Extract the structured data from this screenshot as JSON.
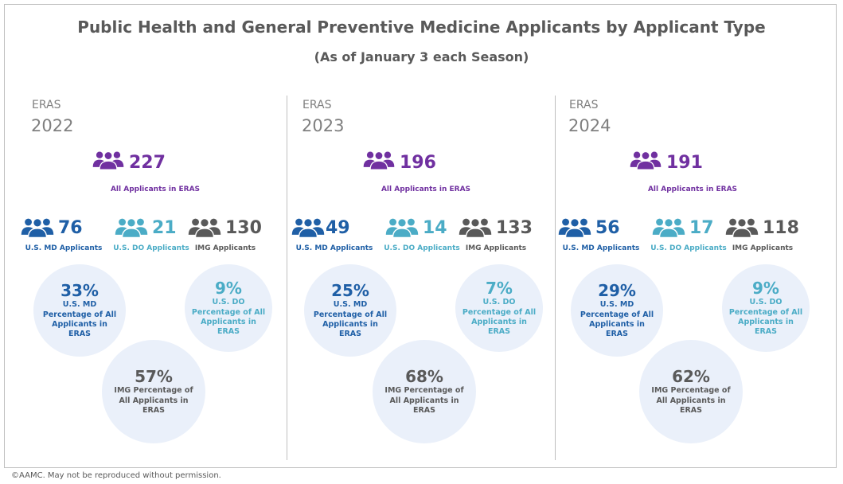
{
  "title": "Public Health and General Preventive Medicine Applicants by Applicant Type",
  "subtitle": "(As of January 3 each Season)",
  "footer": "©AAMC. May not be reproduced without permission.",
  "panels": [
    {
      "system": "ERAS",
      "year": "2022",
      "total": {
        "value": "227",
        "label": "All Applicants in ERAS"
      },
      "groups": [
        {
          "value": "76",
          "label": "U.S. MD Applicants"
        },
        {
          "value": "21",
          "label": "U.S. DO Applicants"
        },
        {
          "value": "130",
          "label": "IMG Applicants"
        }
      ],
      "percentages": [
        {
          "value": "33%",
          "label": "U.S. MD Percentage of All Applicants in ERAS"
        },
        {
          "value": "9%",
          "label": "U.S. DO Percentage of All Applicants in ERAS"
        },
        {
          "value": "57%",
          "label": "IMG Percentage of All Applicants in ERAS"
        }
      ]
    },
    {
      "system": "ERAS",
      "year": "2023",
      "total": {
        "value": "196",
        "label": "All Applicants in ERAS"
      },
      "groups": [
        {
          "value": "49",
          "label": "U.S. MD Applicants"
        },
        {
          "value": "14",
          "label": "U.S. DO Applicants"
        },
        {
          "value": "133",
          "label": "IMG Applicants"
        }
      ],
      "percentages": [
        {
          "value": "25%",
          "label": "U.S. MD Percentage of All Applicants in ERAS"
        },
        {
          "value": "7%",
          "label": "U.S. DO Percentage of All Applicants in ERAS"
        },
        {
          "value": "68%",
          "label": "IMG Percentage of All Applicants in ERAS"
        }
      ]
    },
    {
      "system": "ERAS",
      "year": "2024",
      "total": {
        "value": "191",
        "label": "All Applicants in ERAS"
      },
      "groups": [
        {
          "value": "56",
          "label": "U.S. MD Applicants"
        },
        {
          "value": "17",
          "label": "U.S. DO Applicants"
        },
        {
          "value": "118",
          "label": "IMG Applicants"
        }
      ],
      "percentages": [
        {
          "value": "29%",
          "label": "U.S. MD Percentage of All Applicants in ERAS"
        },
        {
          "value": "9%",
          "label": "U.S. DO Percentage of All Applicants in ERAS"
        },
        {
          "value": "62%",
          "label": "IMG Percentage of All Applicants in ERAS"
        }
      ]
    }
  ]
}
